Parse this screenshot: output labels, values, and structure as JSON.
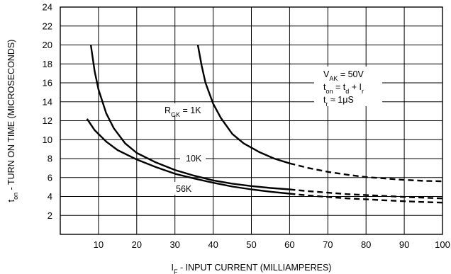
{
  "chart_data": {
    "type": "line",
    "title": "",
    "xlabel": {
      "main": "I",
      "sub": "F",
      "rest": " - INPUT CURRENT (MILLIAMPERES)"
    },
    "ylabel": {
      "main": "t",
      "sub": "on",
      "rest": " - TURN ON TIME (MICROSECONDS)"
    },
    "xlim": [
      0,
      100
    ],
    "ylim": [
      0,
      24
    ],
    "x_ticks": [
      10,
      20,
      30,
      40,
      50,
      60,
      70,
      80,
      90,
      100
    ],
    "y_ticks": [
      2,
      4,
      6,
      8,
      10,
      12,
      14,
      16,
      18,
      20,
      22,
      24
    ],
    "grid": true,
    "series": [
      {
        "name": {
          "main": "R",
          "sub": "GK",
          "rest": " = 1K"
        },
        "solid": [
          [
            36,
            20
          ],
          [
            37,
            17.8
          ],
          [
            38,
            16
          ],
          [
            40,
            13.8
          ],
          [
            42,
            12.3
          ],
          [
            45,
            10.6
          ],
          [
            48,
            9.6
          ],
          [
            52,
            8.7
          ],
          [
            56,
            8
          ],
          [
            60,
            7.5
          ]
        ],
        "dashed": [
          [
            60,
            7.5
          ],
          [
            65,
            7
          ],
          [
            70,
            6.6
          ],
          [
            75,
            6.3
          ],
          [
            80,
            6.05
          ],
          [
            85,
            5.9
          ],
          [
            90,
            5.75
          ],
          [
            95,
            5.65
          ],
          [
            100,
            5.6
          ]
        ]
      },
      {
        "name": {
          "main": "10K",
          "sub": "",
          "rest": ""
        },
        "solid": [
          [
            8,
            20
          ],
          [
            9,
            17.2
          ],
          [
            10,
            15.3
          ],
          [
            12,
            12.8
          ],
          [
            14,
            11.2
          ],
          [
            17,
            9.6
          ],
          [
            20,
            8.6
          ],
          [
            25,
            7.6
          ],
          [
            30,
            6.8
          ],
          [
            35,
            6.2
          ],
          [
            40,
            5.7
          ],
          [
            45,
            5.35
          ],
          [
            50,
            5.1
          ],
          [
            55,
            4.9
          ],
          [
            60,
            4.75
          ]
        ],
        "dashed": [
          [
            60,
            4.75
          ],
          [
            65,
            4.55
          ],
          [
            70,
            4.4
          ],
          [
            75,
            4.25
          ],
          [
            80,
            4.15
          ],
          [
            85,
            4.05
          ],
          [
            90,
            3.95
          ],
          [
            95,
            3.87
          ],
          [
            100,
            3.8
          ]
        ]
      },
      {
        "name": {
          "main": "56K",
          "sub": "",
          "rest": ""
        },
        "solid": [
          [
            7,
            12.2
          ],
          [
            9,
            11
          ],
          [
            12,
            9.8
          ],
          [
            15,
            8.9
          ],
          [
            20,
            7.9
          ],
          [
            25,
            7.1
          ],
          [
            30,
            6.4
          ],
          [
            35,
            5.9
          ],
          [
            40,
            5.45
          ],
          [
            45,
            5.05
          ],
          [
            50,
            4.75
          ],
          [
            55,
            4.5
          ],
          [
            60,
            4.3
          ]
        ],
        "dashed": [
          [
            60,
            4.3
          ],
          [
            65,
            4.1
          ],
          [
            70,
            3.95
          ],
          [
            75,
            3.8
          ],
          [
            80,
            3.7
          ],
          [
            85,
            3.6
          ],
          [
            90,
            3.5
          ],
          [
            95,
            3.42
          ],
          [
            100,
            3.35
          ]
        ]
      }
    ],
    "annotations": [
      [
        {
          "main": "V",
          "sub": "AK",
          "rest": " = 50V"
        }
      ],
      [
        {
          "main": "t",
          "sub": "on",
          "rest": " = t"
        },
        {
          "main": "",
          "sub": "d",
          "rest": " + I"
        },
        {
          "main": "",
          "sub": "r",
          "rest": ""
        }
      ],
      [
        {
          "main": "t",
          "sub": "r",
          "rest": " ≈  1μS"
        }
      ]
    ]
  }
}
